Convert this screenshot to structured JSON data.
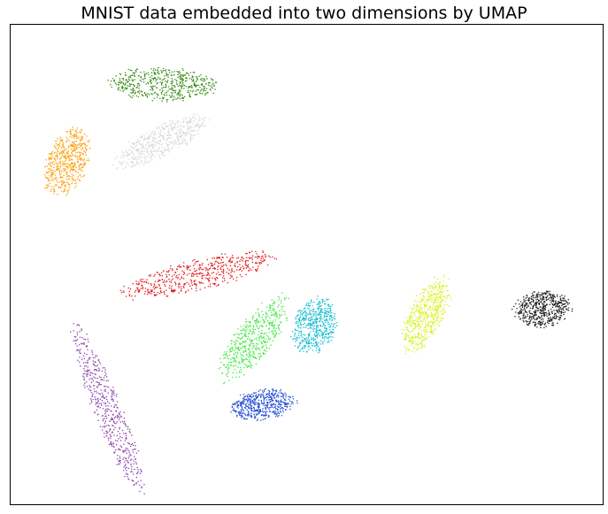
{
  "chart_data": {
    "type": "scatter",
    "title": "MNIST data embedded into two dimensions by UMAP",
    "xlabel": "",
    "ylabel": "",
    "xlim": [
      0,
      100
    ],
    "ylim": [
      0,
      100
    ],
    "grid": false,
    "axis_ticks": false,
    "legend": "none",
    "clusters": [
      {
        "color": "#e31a1c",
        "center": [
          31.7,
          47.9
        ],
        "spread": [
          12.8,
          3.0
        ],
        "angle_deg": 17,
        "count": 520
      },
      {
        "color": "#3c8c1c",
        "center": [
          25.8,
          87.6
        ],
        "spread": [
          8.5,
          3.3
        ],
        "angle_deg": -3,
        "count": 520
      },
      {
        "color": "#d8d8d8",
        "center": [
          25.2,
          75.6
        ],
        "spread": [
          9.0,
          2.8
        ],
        "angle_deg": 33,
        "count": 520
      },
      {
        "color": "#ff9f0a",
        "center": [
          9.4,
          71.2
        ],
        "spread": [
          7.1,
          3.3
        ],
        "angle_deg": 75,
        "count": 520
      },
      {
        "color": "#47e847",
        "center": [
          41.1,
          34.6
        ],
        "spread": [
          9.6,
          3.2
        ],
        "angle_deg": 60,
        "count": 520
      },
      {
        "color": "#17becf",
        "center": [
          51.3,
          37.3
        ],
        "spread": [
          5.6,
          3.5
        ],
        "angle_deg": 75,
        "count": 520
      },
      {
        "color": "#d7f21e",
        "center": [
          70.2,
          39.5
        ],
        "spread": [
          8.0,
          2.9
        ],
        "angle_deg": 70,
        "count": 520
      },
      {
        "color": "#222222",
        "center": [
          89.8,
          40.6
        ],
        "spread": [
          4.6,
          3.5
        ],
        "angle_deg": 10,
        "count": 520
      },
      {
        "color": "#8e44ad",
        "center": [
          16.3,
          20.2
        ],
        "spread": [
          17.5,
          2.3
        ],
        "angle_deg": -72,
        "count": 520
      },
      {
        "color": "#2a52d6",
        "center": [
          42.6,
          20.7
        ],
        "spread": [
          5.2,
          3.0
        ],
        "angle_deg": 10,
        "count": 520
      }
    ]
  }
}
